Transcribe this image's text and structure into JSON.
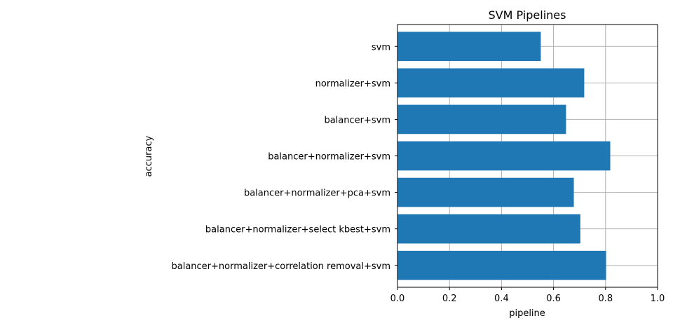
{
  "chart_data": {
    "type": "bar",
    "orientation": "horizontal",
    "title": "SVM Pipelines",
    "xlabel": "pipeline",
    "ylabel": "accuracy",
    "categories": [
      "svm",
      "normalizer+svm",
      "balancer+svm",
      "balancer+normalizer+svm",
      "balancer+normalizer+pca+svm",
      "balancer+normalizer+select kbest+svm",
      "balancer+normalizer+correlation removal+svm"
    ],
    "values": [
      0.551,
      0.718,
      0.648,
      0.818,
      0.678,
      0.703,
      0.802
    ],
    "xlim": [
      0.0,
      1.0
    ],
    "xticks": [
      "0.0",
      "0.2",
      "0.4",
      "0.6",
      "0.8",
      "1.0"
    ],
    "grid": true,
    "bar_color": "#1f77b4"
  }
}
